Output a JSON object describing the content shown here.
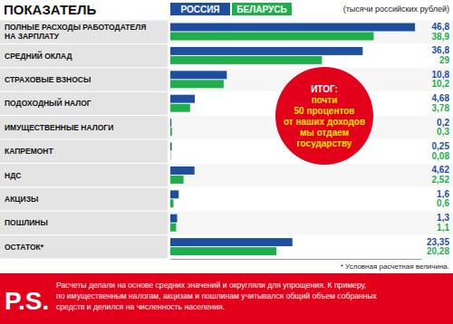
{
  "chart_data": {
    "type": "bar",
    "orientation": "horizontal",
    "title": "ПОКАЗАТЕЛЬ",
    "subtitle": "(тысячи российских рублей)",
    "categories": [
      "ПОЛНЫЕ РАСХОДЫ РАБОТОДАТЕЛЯ НА ЗАРПЛАТУ",
      "СРЕДНИЙ ОКЛАД",
      "СТРАХОВЫЕ ВЗНОСЫ",
      "ПОДОХОДНЫЙ НАЛОГ",
      "ИМУЩЕСТВЕННЫЕ НАЛОГИ",
      "КАПРЕМОНТ",
      "НДС",
      "АКЦИЗЫ",
      "ПОШЛИНЫ",
      "ОСТАТОК*"
    ],
    "series": [
      {
        "name": "РОССИЯ",
        "color": "#1d4f9e",
        "values": [
          46.8,
          36.8,
          10.8,
          4.68,
          0.2,
          0.25,
          4.62,
          1.6,
          1.3,
          23.35
        ],
        "value_labels": [
          "46,8",
          "36,8",
          "10,8",
          "4,68",
          "0,2",
          "0,25",
          "4,62",
          "1,6",
          "1,3",
          "23,35"
        ]
      },
      {
        "name": "БЕЛАРУСЬ",
        "color": "#1fae4b",
        "values": [
          38.9,
          29,
          10.2,
          3.78,
          0.3,
          0.08,
          2.52,
          0.6,
          1.1,
          20.28
        ],
        "value_labels": [
          "38,9",
          "29",
          "10,2",
          "3,78",
          "0,3",
          "0,08",
          "2,52",
          "0,6",
          "1,1",
          "20,28"
        ]
      }
    ],
    "xlim": [
      0,
      48
    ],
    "tick_labels": false,
    "data_labels": true,
    "legend": "top",
    "annotation": [
      "ИТОГ:",
      "почти",
      "50 процентов",
      "от наших доходов",
      "мы отдаем",
      "государству"
    ],
    "footnote": "* Условная расчетная величина.",
    "ps": {
      "label": "P.S.",
      "text": [
        "Расчеты делали на основе средних значений и округляли для упрощения. К примеру,",
        "по имущественным налогам, акцизам и пошлинам учитывался общий объем собранных",
        "средств и делился на численность населения."
      ]
    }
  }
}
